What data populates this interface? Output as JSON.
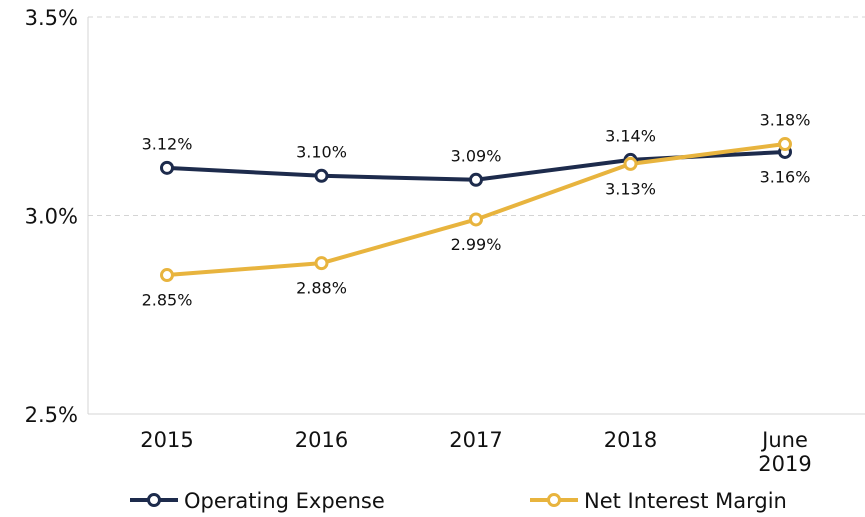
{
  "chart_data": {
    "type": "line",
    "categories": [
      "2015",
      "2016",
      "2017",
      "2018",
      "June 2019"
    ],
    "series": [
      {
        "name": "Operating Expense",
        "color": "#1d2b4c",
        "values": [
          3.12,
          3.1,
          3.09,
          3.14,
          3.16
        ],
        "value_labels": [
          "3.12%",
          "3.10%",
          "3.09%",
          "3.14%",
          "3.16%"
        ]
      },
      {
        "name": "Net Interest Margin",
        "color": "#e8b43e",
        "values": [
          2.85,
          2.88,
          2.99,
          3.13,
          3.18
        ],
        "value_labels": [
          "2.85%",
          "2.88%",
          "2.99%",
          "3.13%",
          "3.18%"
        ]
      }
    ],
    "ylim": [
      2.5,
      3.5
    ],
    "yticks": [
      {
        "value": 2.5,
        "label": "2.5%"
      },
      {
        "value": 3.0,
        "label": "3.0%"
      },
      {
        "value": 3.5,
        "label": "3.5%"
      }
    ],
    "grid": true,
    "legend": "bottom"
  }
}
